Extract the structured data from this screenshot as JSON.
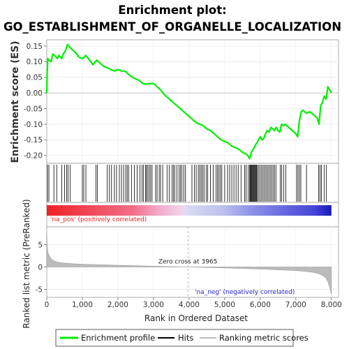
{
  "title_line1": "Enrichment plot:",
  "title_line2": "GO_ESTABLISHMENT_OF_ORGANELLE_LOCALIZATION",
  "chart_data": [
    {
      "type": "line",
      "ylabel": "Enrichment score (ES)",
      "xlim": [
        0,
        8200
      ],
      "ylim": [
        -0.225,
        0.17
      ],
      "yticks": [
        "0.15",
        "0.10",
        "0.05",
        "0.00",
        "-0.05",
        "-0.10",
        "-0.15",
        "-0.20"
      ],
      "ytick_values": [
        0.15,
        0.1,
        0.05,
        0.0,
        -0.05,
        -0.1,
        -0.15,
        -0.2
      ],
      "grid": true,
      "series": [
        {
          "name": "Enrichment profile",
          "color": "#00ee00",
          "x": [
            0,
            10,
            30,
            60,
            120,
            170,
            220,
            260,
            300,
            340,
            380,
            420,
            460,
            500,
            540,
            580,
            620,
            700,
            800,
            900,
            1000,
            1100,
            1200,
            1300,
            1400,
            1500,
            1600,
            1700,
            1800,
            1900,
            2000,
            2100,
            2200,
            2300,
            2400,
            2500,
            2600,
            2700,
            2800,
            2900,
            3000,
            3100,
            3200,
            3300,
            3400,
            3500,
            3600,
            3700,
            3800,
            3900,
            4000,
            4100,
            4200,
            4300,
            4400,
            4500,
            4600,
            4700,
            4800,
            4900,
            5000,
            5100,
            5200,
            5300,
            5400,
            5500,
            5600,
            5650,
            5700,
            5750,
            5800,
            5850,
            5900,
            5950,
            6000,
            6050,
            6100,
            6150,
            6200,
            6250,
            6300,
            6350,
            6400,
            6450,
            6500,
            6550,
            6600,
            6650,
            6700,
            6800,
            6900,
            7000,
            7050,
            7100,
            7150,
            7200,
            7300,
            7400,
            7500,
            7600,
            7650,
            7700,
            7750,
            7800,
            7850,
            7900,
            7950,
            8000
          ],
          "y": [
            0.0,
            0.06,
            0.11,
            0.105,
            0.1,
            0.125,
            0.12,
            0.115,
            0.11,
            0.12,
            0.115,
            0.11,
            0.125,
            0.13,
            0.14,
            0.155,
            0.15,
            0.14,
            0.13,
            0.115,
            0.11,
            0.12,
            0.105,
            0.09,
            0.105,
            0.095,
            0.085,
            0.08,
            0.075,
            0.07,
            0.075,
            0.07,
            0.07,
            0.06,
            0.05,
            0.045,
            0.04,
            0.03,
            0.028,
            0.03,
            0.03,
            0.02,
            0.01,
            -0.005,
            -0.015,
            -0.025,
            -0.035,
            -0.045,
            -0.055,
            -0.065,
            -0.075,
            -0.085,
            -0.095,
            -0.1,
            -0.105,
            -0.115,
            -0.12,
            -0.13,
            -0.14,
            -0.15,
            -0.155,
            -0.16,
            -0.17,
            -0.175,
            -0.18,
            -0.19,
            -0.195,
            -0.2,
            -0.21,
            -0.19,
            -0.18,
            -0.17,
            -0.16,
            -0.15,
            -0.14,
            -0.15,
            -0.145,
            -0.13,
            -0.12,
            -0.125,
            -0.11,
            -0.115,
            -0.12,
            -0.11,
            -0.12,
            -0.125,
            -0.1,
            -0.105,
            -0.1,
            -0.11,
            -0.12,
            -0.13,
            -0.14,
            -0.09,
            -0.06,
            -0.055,
            -0.065,
            -0.06,
            -0.07,
            -0.08,
            -0.1,
            -0.04,
            -0.03,
            -0.01,
            -0.02,
            0.02,
            0.01,
            0.0
          ]
        }
      ]
    },
    {
      "type": "hits",
      "series_name": "Hits",
      "color": "#000000",
      "xlim": [
        0,
        8200
      ],
      "positions": [
        20,
        60,
        200,
        280,
        420,
        500,
        560,
        600,
        660,
        1000,
        1040,
        1100,
        1380,
        1420,
        1700,
        1760,
        1820,
        1900,
        1960,
        2040,
        2100,
        2160,
        2220,
        2260,
        2300,
        2380,
        2460,
        2540,
        2620,
        2680,
        2720,
        2780,
        2800,
        2840,
        2880,
        2920,
        2960,
        3060,
        3100,
        3160,
        3200,
        3260,
        3380,
        3440,
        3520,
        3560,
        3600,
        3660,
        3720,
        3760,
        3800,
        3850,
        3900,
        4080,
        4150,
        4200,
        4260,
        4300,
        4340,
        4380,
        4420,
        4480,
        4520,
        4600,
        4680,
        4760,
        4800,
        4840,
        4880,
        4920,
        5000,
        5080,
        5140,
        5200,
        5260,
        5320,
        5380,
        5460,
        5560,
        5600,
        5660,
        5700,
        5720,
        5740,
        5760,
        5780,
        5800,
        5820,
        5840,
        5860,
        5880,
        5900,
        5920,
        5960,
        6000,
        6040,
        6080,
        6120,
        6160,
        6200,
        6240,
        6280,
        6320,
        6360,
        6400,
        6440,
        6560,
        6600,
        6660,
        6720,
        7020,
        7060,
        7100,
        7140,
        7300,
        7640,
        7680,
        7720,
        7800,
        7860
      ]
    },
    {
      "type": "heatmap",
      "name": "rank-colorbar",
      "xlim": [
        0,
        8200
      ],
      "stops": [
        {
          "at": 0.0,
          "color": "#ee2222"
        },
        {
          "at": 0.12,
          "color": "#f04050"
        },
        {
          "at": 0.3,
          "color": "#f26d85"
        },
        {
          "at": 0.39,
          "color": "#f2a8c8"
        },
        {
          "at": 0.48,
          "color": "#f0d8ee"
        },
        {
          "at": 0.49,
          "color": "#dadcf2"
        },
        {
          "at": 0.62,
          "color": "#bcc0ee"
        },
        {
          "at": 0.72,
          "color": "#8e92e6"
        },
        {
          "at": 0.82,
          "color": "#6a6ee0"
        },
        {
          "at": 0.94,
          "color": "#4444d6"
        },
        {
          "at": 0.975,
          "color": "#2a2ac8"
        },
        {
          "at": 1.0,
          "color": "#1818b0"
        }
      ],
      "annotations": {
        "pos_label": "'na_pos' (positively correlated)",
        "neg_label": "'na_neg' (negatively correlated)",
        "pos_color": "#ee2222",
        "neg_color": "#2222cc"
      }
    },
    {
      "type": "area",
      "series_name": "Ranking metric scores",
      "xlabel": "Rank in Ordered Dataset",
      "ylabel": "Ranked list metric (PreRanked)",
      "xlim": [
        0,
        8200
      ],
      "ylim": [
        -6.8,
        9
      ],
      "xticks": [
        "0",
        "1,000",
        "2,000",
        "3,000",
        "4,000",
        "5,000",
        "6,000",
        "7,000",
        "8,000"
      ],
      "xtick_values": [
        0,
        1000,
        2000,
        3000,
        4000,
        5000,
        6000,
        7000,
        8000
      ],
      "yticks": [
        "5",
        "0",
        "-5"
      ],
      "ytick_values": [
        5,
        0,
        -5
      ],
      "grid": true,
      "color": "#bbbbbb",
      "zero_cross_label": "Zero cross at 3965",
      "zero_cross": 3965,
      "x": [
        0,
        10,
        30,
        60,
        100,
        150,
        200,
        300,
        400,
        600,
        800,
        1000,
        1500,
        2000,
        2500,
        3000,
        3500,
        3965,
        4500,
        5000,
        5500,
        6000,
        6500,
        7000,
        7300,
        7500,
        7650,
        7750,
        7850,
        7900,
        7950,
        7980,
        8000
      ],
      "y": [
        7.5,
        5.0,
        3.4,
        2.6,
        2.1,
        1.7,
        1.4,
        1.1,
        0.95,
        0.8,
        0.7,
        0.62,
        0.5,
        0.38,
        0.28,
        0.18,
        0.09,
        0.0,
        -0.1,
        -0.2,
        -0.32,
        -0.45,
        -0.6,
        -0.8,
        -1.0,
        -1.2,
        -1.5,
        -1.9,
        -2.5,
        -3.3,
        -4.5,
        -5.5,
        -6.2
      ]
    }
  ],
  "legend": {
    "items": [
      {
        "label": "Enrichment profile",
        "color": "#00ee00"
      },
      {
        "label": "Hits",
        "color": "#000000"
      },
      {
        "label": "Ranking metric scores",
        "color": "#bbbbbb"
      }
    ]
  }
}
